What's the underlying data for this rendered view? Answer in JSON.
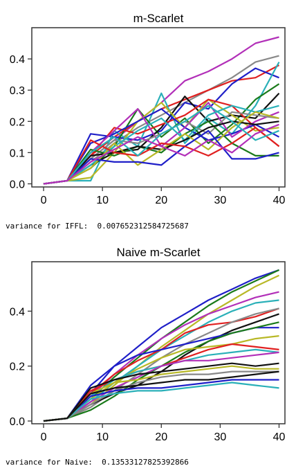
{
  "chart_data": [
    {
      "type": "line",
      "title": "m-Scarlet",
      "xlabel": "",
      "ylabel": "",
      "xlim": [
        -2,
        41
      ],
      "ylim": [
        -0.01,
        0.5
      ],
      "xticks": [
        0,
        10,
        20,
        30,
        40
      ],
      "yticks": [
        0.0,
        0.1,
        0.2,
        0.3,
        0.4
      ],
      "ytick_labels": [
        "0.0",
        "0.1",
        "0.2",
        "0.3",
        "0.4"
      ],
      "x": [
        0,
        4,
        8,
        12,
        16,
        20,
        24,
        28,
        32,
        36,
        40
      ],
      "series": [
        {
          "color": "#b22fb8",
          "values": [
            0,
            0.01,
            0.08,
            0.14,
            0.2,
            0.26,
            0.33,
            0.36,
            0.4,
            0.45,
            0.47
          ]
        },
        {
          "color": "#888888",
          "values": [
            0,
            0.01,
            0.07,
            0.13,
            0.18,
            0.22,
            0.26,
            0.3,
            0.34,
            0.39,
            0.41
          ]
        },
        {
          "color": "#e02020",
          "values": [
            0,
            0.01,
            0.09,
            0.15,
            0.2,
            0.24,
            0.27,
            0.3,
            0.33,
            0.34,
            0.38
          ]
        },
        {
          "color": "#1f1fc8",
          "values": [
            0,
            0.01,
            0.16,
            0.15,
            0.14,
            0.17,
            0.26,
            0.24,
            0.32,
            0.37,
            0.34
          ]
        },
        {
          "color": "#2ab0b8",
          "values": [
            0,
            0.01,
            0.01,
            0.17,
            0.12,
            0.29,
            0.13,
            0.21,
            0.16,
            0.25,
            0.39
          ]
        },
        {
          "color": "#1a7a1a",
          "values": [
            0,
            0.01,
            0.05,
            0.12,
            0.24,
            0.15,
            0.21,
            0.13,
            0.19,
            0.27,
            0.32
          ]
        },
        {
          "color": "#111111",
          "values": [
            0,
            0.01,
            0.06,
            0.1,
            0.11,
            0.18,
            0.28,
            0.2,
            0.22,
            0.21,
            0.29
          ]
        },
        {
          "color": "#b8b826",
          "values": [
            0,
            0.01,
            0.02,
            0.1,
            0.2,
            0.26,
            0.18,
            0.27,
            0.22,
            0.17,
            0.18
          ]
        },
        {
          "color": "#e02020",
          "values": [
            0,
            0.01,
            0.09,
            0.18,
            0.16,
            0.19,
            0.22,
            0.27,
            0.25,
            0.18,
            0.12
          ]
        },
        {
          "color": "#1f1fc8",
          "values": [
            0,
            0.01,
            0.13,
            0.16,
            0.2,
            0.24,
            0.18,
            0.14,
            0.16,
            0.19,
            0.15
          ]
        },
        {
          "color": "#b22fb8",
          "values": [
            0,
            0.01,
            0.1,
            0.17,
            0.24,
            0.12,
            0.18,
            0.26,
            0.15,
            0.2,
            0.23
          ]
        },
        {
          "color": "#888888",
          "values": [
            0,
            0.01,
            0.08,
            0.14,
            0.13,
            0.16,
            0.2,
            0.16,
            0.23,
            0.22,
            0.21
          ]
        },
        {
          "color": "#1a7a1a",
          "values": [
            0,
            0.01,
            0.11,
            0.09,
            0.12,
            0.1,
            0.16,
            0.2,
            0.13,
            0.09,
            0.09
          ]
        },
        {
          "color": "#2ab0b8",
          "values": [
            0,
            0.01,
            0.06,
            0.12,
            0.17,
            0.21,
            0.14,
            0.22,
            0.25,
            0.23,
            0.25
          ]
        },
        {
          "color": "#111111",
          "values": [
            0,
            0.01,
            0.09,
            0.1,
            0.12,
            0.11,
            0.14,
            0.18,
            0.2,
            0.19,
            0.2
          ]
        },
        {
          "color": "#b8b826",
          "values": [
            0,
            0.01,
            0.05,
            0.13,
            0.06,
            0.11,
            0.16,
            0.11,
            0.18,
            0.23,
            0.21
          ]
        },
        {
          "color": "#1f1fc8",
          "values": [
            0,
            0.01,
            0.08,
            0.07,
            0.07,
            0.06,
            0.12,
            0.17,
            0.08,
            0.08,
            0.1
          ]
        },
        {
          "color": "#e02020",
          "values": [
            0,
            0.01,
            0.14,
            0.1,
            0.09,
            0.13,
            0.12,
            0.09,
            0.13,
            0.18,
            0.12
          ]
        },
        {
          "color": "#2ab0b8",
          "values": [
            0,
            0.01,
            0.1,
            0.15,
            0.09,
            0.16,
            0.2,
            0.25,
            0.2,
            0.14,
            0.17
          ]
        },
        {
          "color": "#b22fb8",
          "values": [
            0,
            0.01,
            0.07,
            0.11,
            0.15,
            0.12,
            0.09,
            0.14,
            0.1,
            0.16,
            0.19
          ]
        }
      ]
    },
    {
      "type": "line",
      "title": "Naive m-Scarlet",
      "xlabel": "",
      "ylabel": "",
      "xlim": [
        -2,
        41
      ],
      "ylim": [
        -0.01,
        0.58
      ],
      "xticks": [
        0,
        10,
        20,
        30,
        40
      ],
      "yticks": [
        0.0,
        0.2,
        0.4
      ],
      "ytick_labels": [
        "0.0",
        "0.2",
        "0.4"
      ],
      "x": [
        0,
        4,
        8,
        12,
        16,
        20,
        24,
        28,
        32,
        36,
        40
      ],
      "series": [
        {
          "color": "#1f1fc8",
          "values": [
            0,
            0.01,
            0.1,
            0.2,
            0.27,
            0.34,
            0.39,
            0.44,
            0.48,
            0.52,
            0.55
          ]
        },
        {
          "color": "#1a7a1a",
          "values": [
            0,
            0.01,
            0.08,
            0.16,
            0.23,
            0.3,
            0.36,
            0.42,
            0.47,
            0.51,
            0.55
          ]
        },
        {
          "color": "#b8b826",
          "values": [
            0,
            0.01,
            0.06,
            0.13,
            0.2,
            0.27,
            0.33,
            0.39,
            0.44,
            0.49,
            0.53
          ]
        },
        {
          "color": "#b22fb8",
          "values": [
            0,
            0.01,
            0.09,
            0.17,
            0.24,
            0.3,
            0.35,
            0.39,
            0.42,
            0.45,
            0.47
          ]
        },
        {
          "color": "#2ab0b8",
          "values": [
            0,
            0.01,
            0.07,
            0.14,
            0.2,
            0.26,
            0.31,
            0.36,
            0.4,
            0.43,
            0.44
          ]
        },
        {
          "color": "#e02020",
          "values": [
            0,
            0.01,
            0.1,
            0.17,
            0.22,
            0.26,
            0.32,
            0.35,
            0.36,
            0.38,
            0.41
          ]
        },
        {
          "color": "#888888",
          "values": [
            0,
            0.01,
            0.05,
            0.11,
            0.17,
            0.23,
            0.28,
            0.32,
            0.36,
            0.39,
            0.41
          ]
        },
        {
          "color": "#111111",
          "values": [
            0,
            0.01,
            0.06,
            0.1,
            0.13,
            0.18,
            0.24,
            0.29,
            0.33,
            0.36,
            0.39
          ]
        },
        {
          "color": "#1f1fc8",
          "values": [
            0,
            0.01,
            0.13,
            0.2,
            0.24,
            0.26,
            0.28,
            0.3,
            0.32,
            0.34,
            0.34
          ]
        },
        {
          "color": "#1a7a1a",
          "values": [
            0,
            0.01,
            0.04,
            0.09,
            0.15,
            0.2,
            0.25,
            0.29,
            0.32,
            0.34,
            0.36
          ]
        },
        {
          "color": "#b8b826",
          "values": [
            0,
            0.01,
            0.08,
            0.14,
            0.19,
            0.23,
            0.26,
            0.27,
            0.28,
            0.3,
            0.31
          ]
        },
        {
          "color": "#e02020",
          "values": [
            0,
            0.01,
            0.11,
            0.15,
            0.18,
            0.2,
            0.23,
            0.26,
            0.28,
            0.27,
            0.26
          ]
        },
        {
          "color": "#2ab0b8",
          "values": [
            0,
            0.01,
            0.09,
            0.15,
            0.18,
            0.2,
            0.22,
            0.24,
            0.25,
            0.26,
            0.25
          ]
        },
        {
          "color": "#b22fb8",
          "values": [
            0,
            0.01,
            0.07,
            0.12,
            0.16,
            0.2,
            0.22,
            0.22,
            0.23,
            0.24,
            0.25
          ]
        },
        {
          "color": "#111111",
          "values": [
            0,
            0.01,
            0.12,
            0.15,
            0.17,
            0.18,
            0.19,
            0.2,
            0.21,
            0.2,
            0.21
          ]
        },
        {
          "color": "#888888",
          "values": [
            0,
            0.01,
            0.06,
            0.11,
            0.14,
            0.16,
            0.17,
            0.17,
            0.18,
            0.18,
            0.18
          ]
        },
        {
          "color": "#1f1fc8",
          "values": [
            0,
            0.01,
            0.09,
            0.11,
            0.12,
            0.12,
            0.13,
            0.14,
            0.15,
            0.15,
            0.15
          ]
        },
        {
          "color": "#2ab0b8",
          "values": [
            0,
            0.01,
            0.08,
            0.1,
            0.11,
            0.11,
            0.12,
            0.13,
            0.14,
            0.13,
            0.12
          ]
        },
        {
          "color": "#b8b826",
          "values": [
            0,
            0.01,
            0.1,
            0.14,
            0.15,
            0.17,
            0.18,
            0.19,
            0.2,
            0.19,
            0.19
          ]
        },
        {
          "color": "#111111",
          "values": [
            0,
            0.01,
            0.1,
            0.12,
            0.13,
            0.14,
            0.15,
            0.15,
            0.16,
            0.17,
            0.18
          ]
        }
      ]
    }
  ],
  "outputs": {
    "line1": "variance for IFFL:  0.007652312584725687",
    "line2": "variance for Naive:  0.13533127825392866"
  }
}
